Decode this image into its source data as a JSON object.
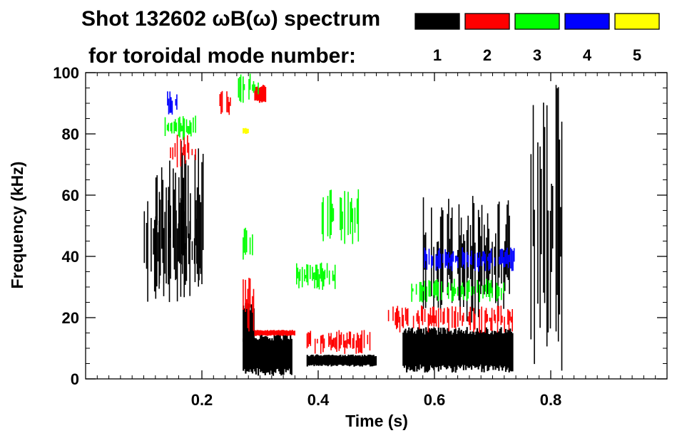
{
  "chart_data": {
    "type": "heatmap",
    "title_line1": "Shot 132602 ωB(ω) spectrum",
    "title_line2": "for toroidal mode number:",
    "xlabel": "Time (s)",
    "ylabel": "Frequency (kHz)",
    "xlim": [
      0,
      1.0
    ],
    "ylim": [
      0,
      100
    ],
    "xticks": [
      0.2,
      0.4,
      0.6,
      0.8
    ],
    "yticks": [
      0,
      20,
      40,
      60,
      80,
      100
    ],
    "x_minor_step": 0.02,
    "y_minor_step": 5,
    "legend": [
      {
        "mode": "1",
        "color": "#000000"
      },
      {
        "mode": "2",
        "color": "#ff0000"
      },
      {
        "mode": "3",
        "color": "#00ff00"
      },
      {
        "mode": "4",
        "color": "#0000ff"
      },
      {
        "mode": "5",
        "color": "#ffff00"
      }
    ],
    "series": [
      {
        "name": "n=1",
        "color": "#000000",
        "regions": [
          {
            "t": [
              0.12,
              0.205
            ],
            "f": [
              30,
              78
            ]
          },
          {
            "t": [
              0.1,
              0.2
            ],
            "f": [
              25,
              60
            ]
          },
          {
            "t": [
              0.27,
              0.355
            ],
            "f": [
              1,
              15
            ]
          },
          {
            "t": [
              0.27,
              0.29
            ],
            "f": [
              10,
              25
            ]
          },
          {
            "t": [
              0.38,
              0.5
            ],
            "f": [
              4,
              8
            ]
          },
          {
            "t": [
              0.545,
              0.735
            ],
            "f": [
              2,
              17
            ]
          },
          {
            "t": [
              0.58,
              0.73
            ],
            "f": [
              18,
              60
            ]
          },
          {
            "t": [
              0.765,
              0.82
            ],
            "f": [
              2,
              98
            ]
          }
        ]
      },
      {
        "name": "n=2",
        "color": "#ff0000",
        "regions": [
          {
            "t": [
              0.145,
              0.19
            ],
            "f": [
              69,
              80
            ]
          },
          {
            "t": [
              0.23,
              0.25
            ],
            "f": [
              86,
              94
            ]
          },
          {
            "t": [
              0.29,
              0.31
            ],
            "f": [
              90,
              96
            ]
          },
          {
            "t": [
              0.27,
              0.29
            ],
            "f": [
              15,
              35
            ]
          },
          {
            "t": [
              0.29,
              0.36
            ],
            "f": [
              14,
              16
            ]
          },
          {
            "t": [
              0.38,
              0.49
            ],
            "f": [
              8,
              16
            ]
          },
          {
            "t": [
              0.52,
              0.735
            ],
            "f": [
              15,
              24
            ]
          }
        ]
      },
      {
        "name": "n=3",
        "color": "#00ff00",
        "regions": [
          {
            "t": [
              0.13,
              0.19
            ],
            "f": [
              78,
              86
            ]
          },
          {
            "t": [
              0.26,
              0.3
            ],
            "f": [
              90,
              100
            ]
          },
          {
            "t": [
              0.27,
              0.29
            ],
            "f": [
              35,
              50
            ]
          },
          {
            "t": [
              0.4,
              0.47
            ],
            "f": [
              43,
              62
            ]
          },
          {
            "t": [
              0.36,
              0.43
            ],
            "f": [
              29,
              38
            ]
          },
          {
            "t": [
              0.56,
              0.72
            ],
            "f": [
              25,
              33
            ]
          }
        ]
      },
      {
        "name": "n=4",
        "color": "#0000ff",
        "regions": [
          {
            "t": [
              0.14,
              0.16
            ],
            "f": [
              86,
              94
            ]
          },
          {
            "t": [
              0.58,
              0.74
            ],
            "f": [
              35,
              43
            ]
          }
        ]
      },
      {
        "name": "n=5",
        "color": "#ffff00",
        "regions": [
          {
            "t": [
              0.27,
              0.28
            ],
            "f": [
              80,
              82
            ]
          }
        ]
      }
    ]
  }
}
